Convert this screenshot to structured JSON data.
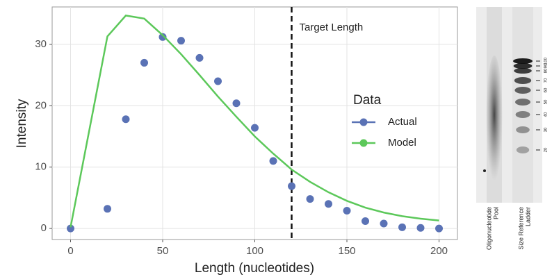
{
  "chart_data": {
    "type": "line",
    "x": [
      0,
      20,
      30,
      40,
      50,
      60,
      70,
      80,
      90,
      100,
      110,
      120,
      130,
      140,
      150,
      160,
      170,
      180,
      190,
      200
    ],
    "series": [
      {
        "name": "Actual",
        "color": "#5a72b5",
        "style": "points",
        "values": [
          0,
          3.2,
          17.8,
          27,
          31.2,
          30.6,
          27.8,
          24,
          20.4,
          16.4,
          11,
          6.9,
          4.8,
          4,
          2.9,
          1.2,
          0.8,
          0.2,
          0.1,
          0
        ]
      },
      {
        "name": "Model",
        "color": "#5cc85a",
        "style": "line",
        "values": [
          0.2,
          31.3,
          34.7,
          34.2,
          31.5,
          28.4,
          25,
          21.5,
          18.2,
          15,
          12.2,
          9.6,
          7.6,
          5.9,
          4.5,
          3.4,
          2.6,
          2,
          1.6,
          1.3
        ]
      }
    ],
    "xlabel": "Length (nucleotides)",
    "ylabel": "Intensity",
    "xlim": [
      -10,
      210
    ],
    "xticks": [
      0,
      50,
      100,
      150,
      200
    ],
    "ylim": [
      -1.8,
      36.1
    ],
    "yticks": [
      0,
      10,
      20,
      30
    ],
    "grid": true,
    "legend_title": "Data",
    "annotations": [
      {
        "x": 120,
        "text": "Target Length"
      }
    ]
  },
  "gel": {
    "ladder_labels": [
      "100",
      "90",
      "80",
      "70",
      "60",
      "50",
      "40",
      "30",
      "20"
    ],
    "lanes": [
      [
        "Oligonucleotide",
        "Pool"
      ],
      [
        "Size Reference",
        "Ladder"
      ]
    ]
  }
}
